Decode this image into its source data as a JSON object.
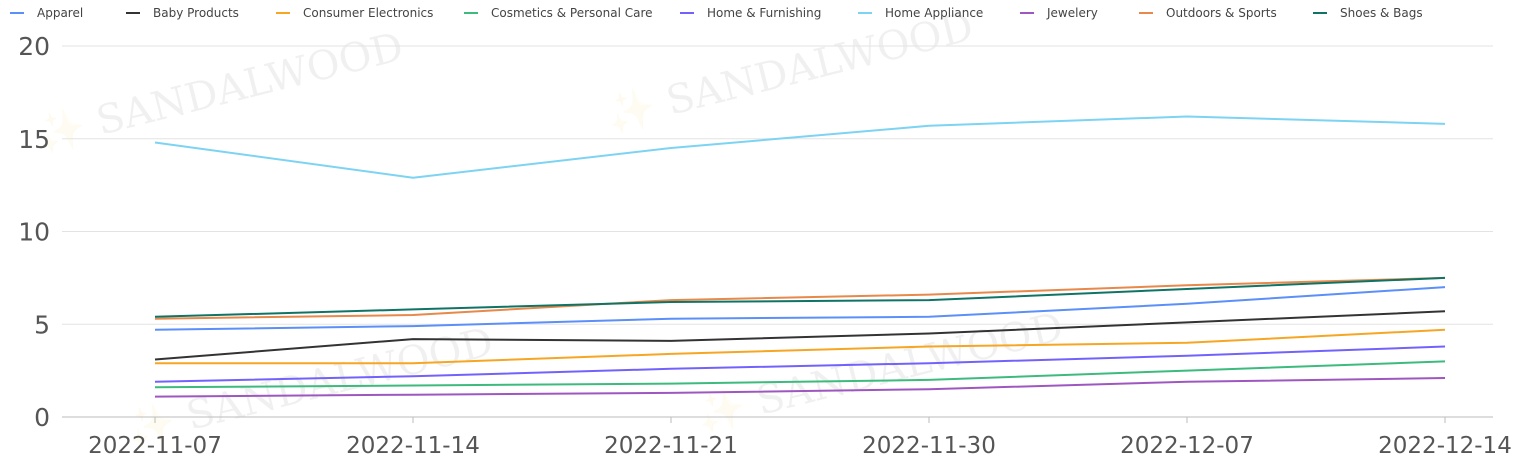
{
  "chart_data": {
    "type": "line",
    "title": "",
    "xlabel": "",
    "ylabel": "",
    "x": [
      "2022-11-07",
      "2022-11-14",
      "2022-11-21",
      "2022-11-30",
      "2022-12-07",
      "2022-12-14"
    ],
    "ylim": [
      0,
      20
    ],
    "yticks": [
      "0",
      "5",
      "10",
      "15",
      "20"
    ],
    "grid": true,
    "legend": "top-left",
    "watermark": "SANDALWOOD",
    "series": [
      {
        "name": "Apparel",
        "color": "#5B8FF9",
        "values": [
          4.7,
          4.9,
          5.3,
          5.4,
          6.1,
          7.0
        ]
      },
      {
        "name": "Baby Products",
        "color": "#333333",
        "values": [
          3.1,
          4.2,
          4.1,
          4.5,
          5.1,
          5.7
        ]
      },
      {
        "name": "Consumer Electronics",
        "color": "#F6A623",
        "values": [
          2.9,
          2.9,
          3.4,
          3.8,
          4.0,
          4.7
        ]
      },
      {
        "name": "Cosmetics & Personal Care",
        "color": "#3DBA7E",
        "values": [
          1.6,
          1.7,
          1.8,
          2.0,
          2.5,
          3.0
        ]
      },
      {
        "name": "Home & Furnishing",
        "color": "#7262FD",
        "values": [
          1.9,
          2.2,
          2.6,
          2.9,
          3.3,
          3.8
        ]
      },
      {
        "name": "Home Appliance",
        "color": "#7DD3F2",
        "values": [
          14.8,
          12.9,
          14.5,
          15.7,
          16.2,
          15.8
        ]
      },
      {
        "name": "Jewelery",
        "color": "#9E57C0",
        "values": [
          1.1,
          1.2,
          1.3,
          1.5,
          1.9,
          2.1
        ]
      },
      {
        "name": "Outdoors & Sports",
        "color": "#E8884A",
        "values": [
          5.3,
          5.5,
          6.3,
          6.6,
          7.1,
          7.5
        ]
      },
      {
        "name": "Shoes & Bags",
        "color": "#0F7466",
        "values": [
          5.4,
          5.8,
          6.2,
          6.3,
          6.9,
          7.5
        ]
      }
    ]
  }
}
